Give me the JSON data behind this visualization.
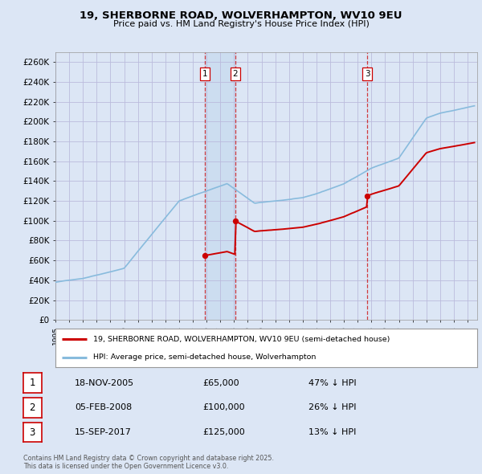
{
  "title": "19, SHERBORNE ROAD, WOLVERHAMPTON, WV10 9EU",
  "subtitle": "Price paid vs. HM Land Registry's House Price Index (HPI)",
  "background_color": "#dce6f5",
  "plot_bg_color": "#dce6f5",
  "ylim": [
    0,
    270000
  ],
  "yticks": [
    0,
    20000,
    40000,
    60000,
    80000,
    100000,
    120000,
    140000,
    160000,
    180000,
    200000,
    220000,
    240000,
    260000
  ],
  "purchases": [
    {
      "date_num": 2005.88,
      "price": 65000,
      "label": "1"
    },
    {
      "date_num": 2008.09,
      "price": 100000,
      "label": "2"
    },
    {
      "date_num": 2017.71,
      "price": 125000,
      "label": "3"
    }
  ],
  "vline_dates": [
    2005.88,
    2008.09,
    2017.71
  ],
  "legend_line1": "19, SHERBORNE ROAD, WOLVERHAMPTON, WV10 9EU (semi-detached house)",
  "legend_line2": "HPI: Average price, semi-detached house, Wolverhampton",
  "table_rows": [
    {
      "num": "1",
      "date": "18-NOV-2005",
      "price": "£65,000",
      "pct": "47% ↓ HPI"
    },
    {
      "num": "2",
      "date": "05-FEB-2008",
      "price": "£100,000",
      "pct": "26% ↓ HPI"
    },
    {
      "num": "3",
      "date": "15-SEP-2017",
      "price": "£125,000",
      "pct": "13% ↓ HPI"
    }
  ],
  "footer": "Contains HM Land Registry data © Crown copyright and database right 2025.\nThis data is licensed under the Open Government Licence v3.0.",
  "red_color": "#cc0000",
  "blue_color": "#88bbdd",
  "vline_color": "#cc0000",
  "grid_color": "#bbbbdd",
  "shaded_region_color": "#ccddf0"
}
